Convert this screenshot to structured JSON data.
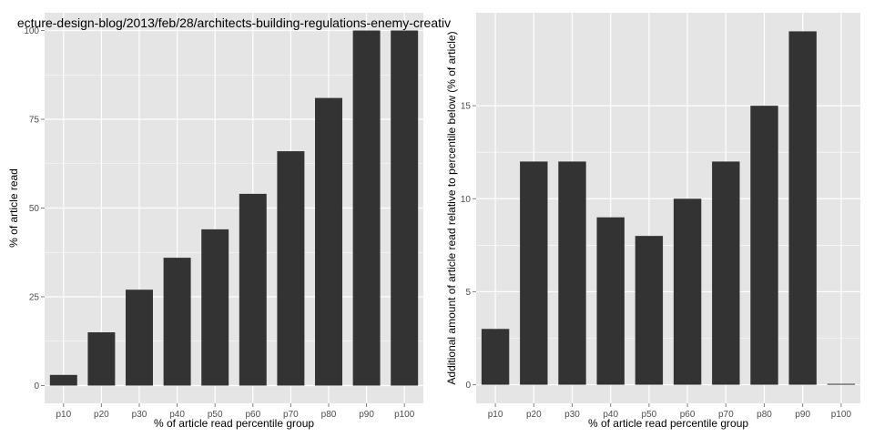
{
  "chart_data": [
    {
      "type": "bar",
      "title": "ecture-design-blog/2013/feb/28/architects-building-regulations-enemy-creativ",
      "xlabel": "% of article read percentile group",
      "ylabel": "% of article read",
      "categories": [
        "p10",
        "p20",
        "p30",
        "p40",
        "p50",
        "p60",
        "p70",
        "p80",
        "p90",
        "p100"
      ],
      "values": [
        3,
        15,
        27,
        36,
        44,
        54,
        66,
        81,
        100,
        100
      ],
      "ylim": [
        -5,
        105
      ],
      "yticks": [
        0,
        25,
        50,
        75,
        100
      ],
      "ytick_labels": [
        "0",
        "25",
        "50",
        "75",
        "100"
      ],
      "grid": true,
      "panel_color": "#e5e5e5",
      "grid_color": "#ffffff",
      "bar_color": "#333333"
    },
    {
      "type": "bar",
      "title": "",
      "xlabel": "% of article read percentile group",
      "ylabel": "Additional amount of article read relative to percentile below (% of article)",
      "categories": [
        "p10",
        "p20",
        "p30",
        "p40",
        "p50",
        "p60",
        "p70",
        "p80",
        "p90",
        "p100"
      ],
      "values": [
        3,
        12,
        12,
        9,
        8,
        10,
        12,
        15,
        19,
        0
      ],
      "ylim": [
        -1,
        20
      ],
      "yticks": [
        0,
        5,
        10,
        15
      ],
      "ytick_labels": [
        "0",
        "5",
        "10",
        "15"
      ],
      "grid": true,
      "panel_color": "#e5e5e5",
      "grid_color": "#ffffff",
      "bar_color": "#333333"
    }
  ]
}
